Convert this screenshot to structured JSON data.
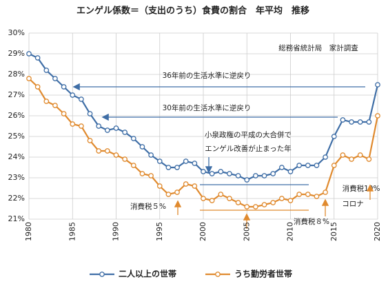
{
  "chart_data": {
    "type": "line",
    "title": "エンゲル係数＝（支出のうち）食費の割合　年平均　推移",
    "source": "総務省統計局　家計調査",
    "annotations": [
      "36年前の生活水準に逆戻り",
      "30年前の生活水準に逆戻り",
      "小泉政権の平成の大合併で",
      "エンゲル改善が止まった年",
      "消費税５%",
      "消費税８%",
      "消費税10%",
      "コロナ"
    ],
    "x": [
      1980,
      1981,
      1982,
      1983,
      1984,
      1985,
      1986,
      1987,
      1988,
      1989,
      1990,
      1991,
      1992,
      1993,
      1994,
      1995,
      1996,
      1997,
      1998,
      1999,
      2000,
      2001,
      2002,
      2003,
      2004,
      2005,
      2006,
      2007,
      2008,
      2009,
      2010,
      2011,
      2012,
      2013,
      2014,
      2015,
      2016,
      2017,
      2018,
      2019,
      2020
    ],
    "series": [
      {
        "name": "二人以上の世帯",
        "color": "#3f6ea6",
        "values": [
          29.0,
          28.8,
          28.2,
          27.8,
          27.4,
          27.0,
          26.8,
          26.1,
          25.5,
          25.3,
          25.4,
          25.2,
          24.9,
          24.5,
          24.1,
          23.8,
          23.5,
          23.5,
          23.8,
          23.7,
          23.3,
          23.2,
          23.3,
          23.2,
          23.1,
          22.9,
          23.1,
          23.1,
          23.2,
          23.5,
          23.3,
          23.6,
          23.6,
          23.6,
          24.0,
          25.0,
          25.8,
          25.7,
          25.7,
          25.7,
          27.5
        ]
      },
      {
        "name": "うち勤労者世帯",
        "color": "#e08a2e",
        "values": [
          27.8,
          27.4,
          26.7,
          26.5,
          26.1,
          25.6,
          25.5,
          24.8,
          24.3,
          24.3,
          24.1,
          23.9,
          23.6,
          23.2,
          23.1,
          22.6,
          22.2,
          22.3,
          22.7,
          22.6,
          22.0,
          21.9,
          22.2,
          22.0,
          21.8,
          21.6,
          21.6,
          21.7,
          21.8,
          22.0,
          21.9,
          22.2,
          22.2,
          22.1,
          22.3,
          23.6,
          24.1,
          23.9,
          24.1,
          23.9,
          26.0
        ]
      }
    ],
    "xlim": [
      1980,
      2020
    ],
    "xticks": [
      1980,
      1985,
      1990,
      1995,
      2000,
      2005,
      2010,
      2015,
      2020
    ],
    "ylim": [
      21,
      30
    ],
    "yticks": [
      {
        "value": 21,
        "label": "21%"
      },
      {
        "value": 22,
        "label": "22%"
      },
      {
        "value": 23,
        "label": "23%"
      },
      {
        "value": 24,
        "label": "24%"
      },
      {
        "value": 25,
        "label": "25%"
      },
      {
        "value": 26,
        "label": "26%"
      },
      {
        "value": 27,
        "label": "27%"
      },
      {
        "value": 28,
        "label": "28%"
      },
      {
        "value": 29,
        "label": "29%"
      },
      {
        "value": 30,
        "label": "30%"
      }
    ],
    "grid": true
  }
}
